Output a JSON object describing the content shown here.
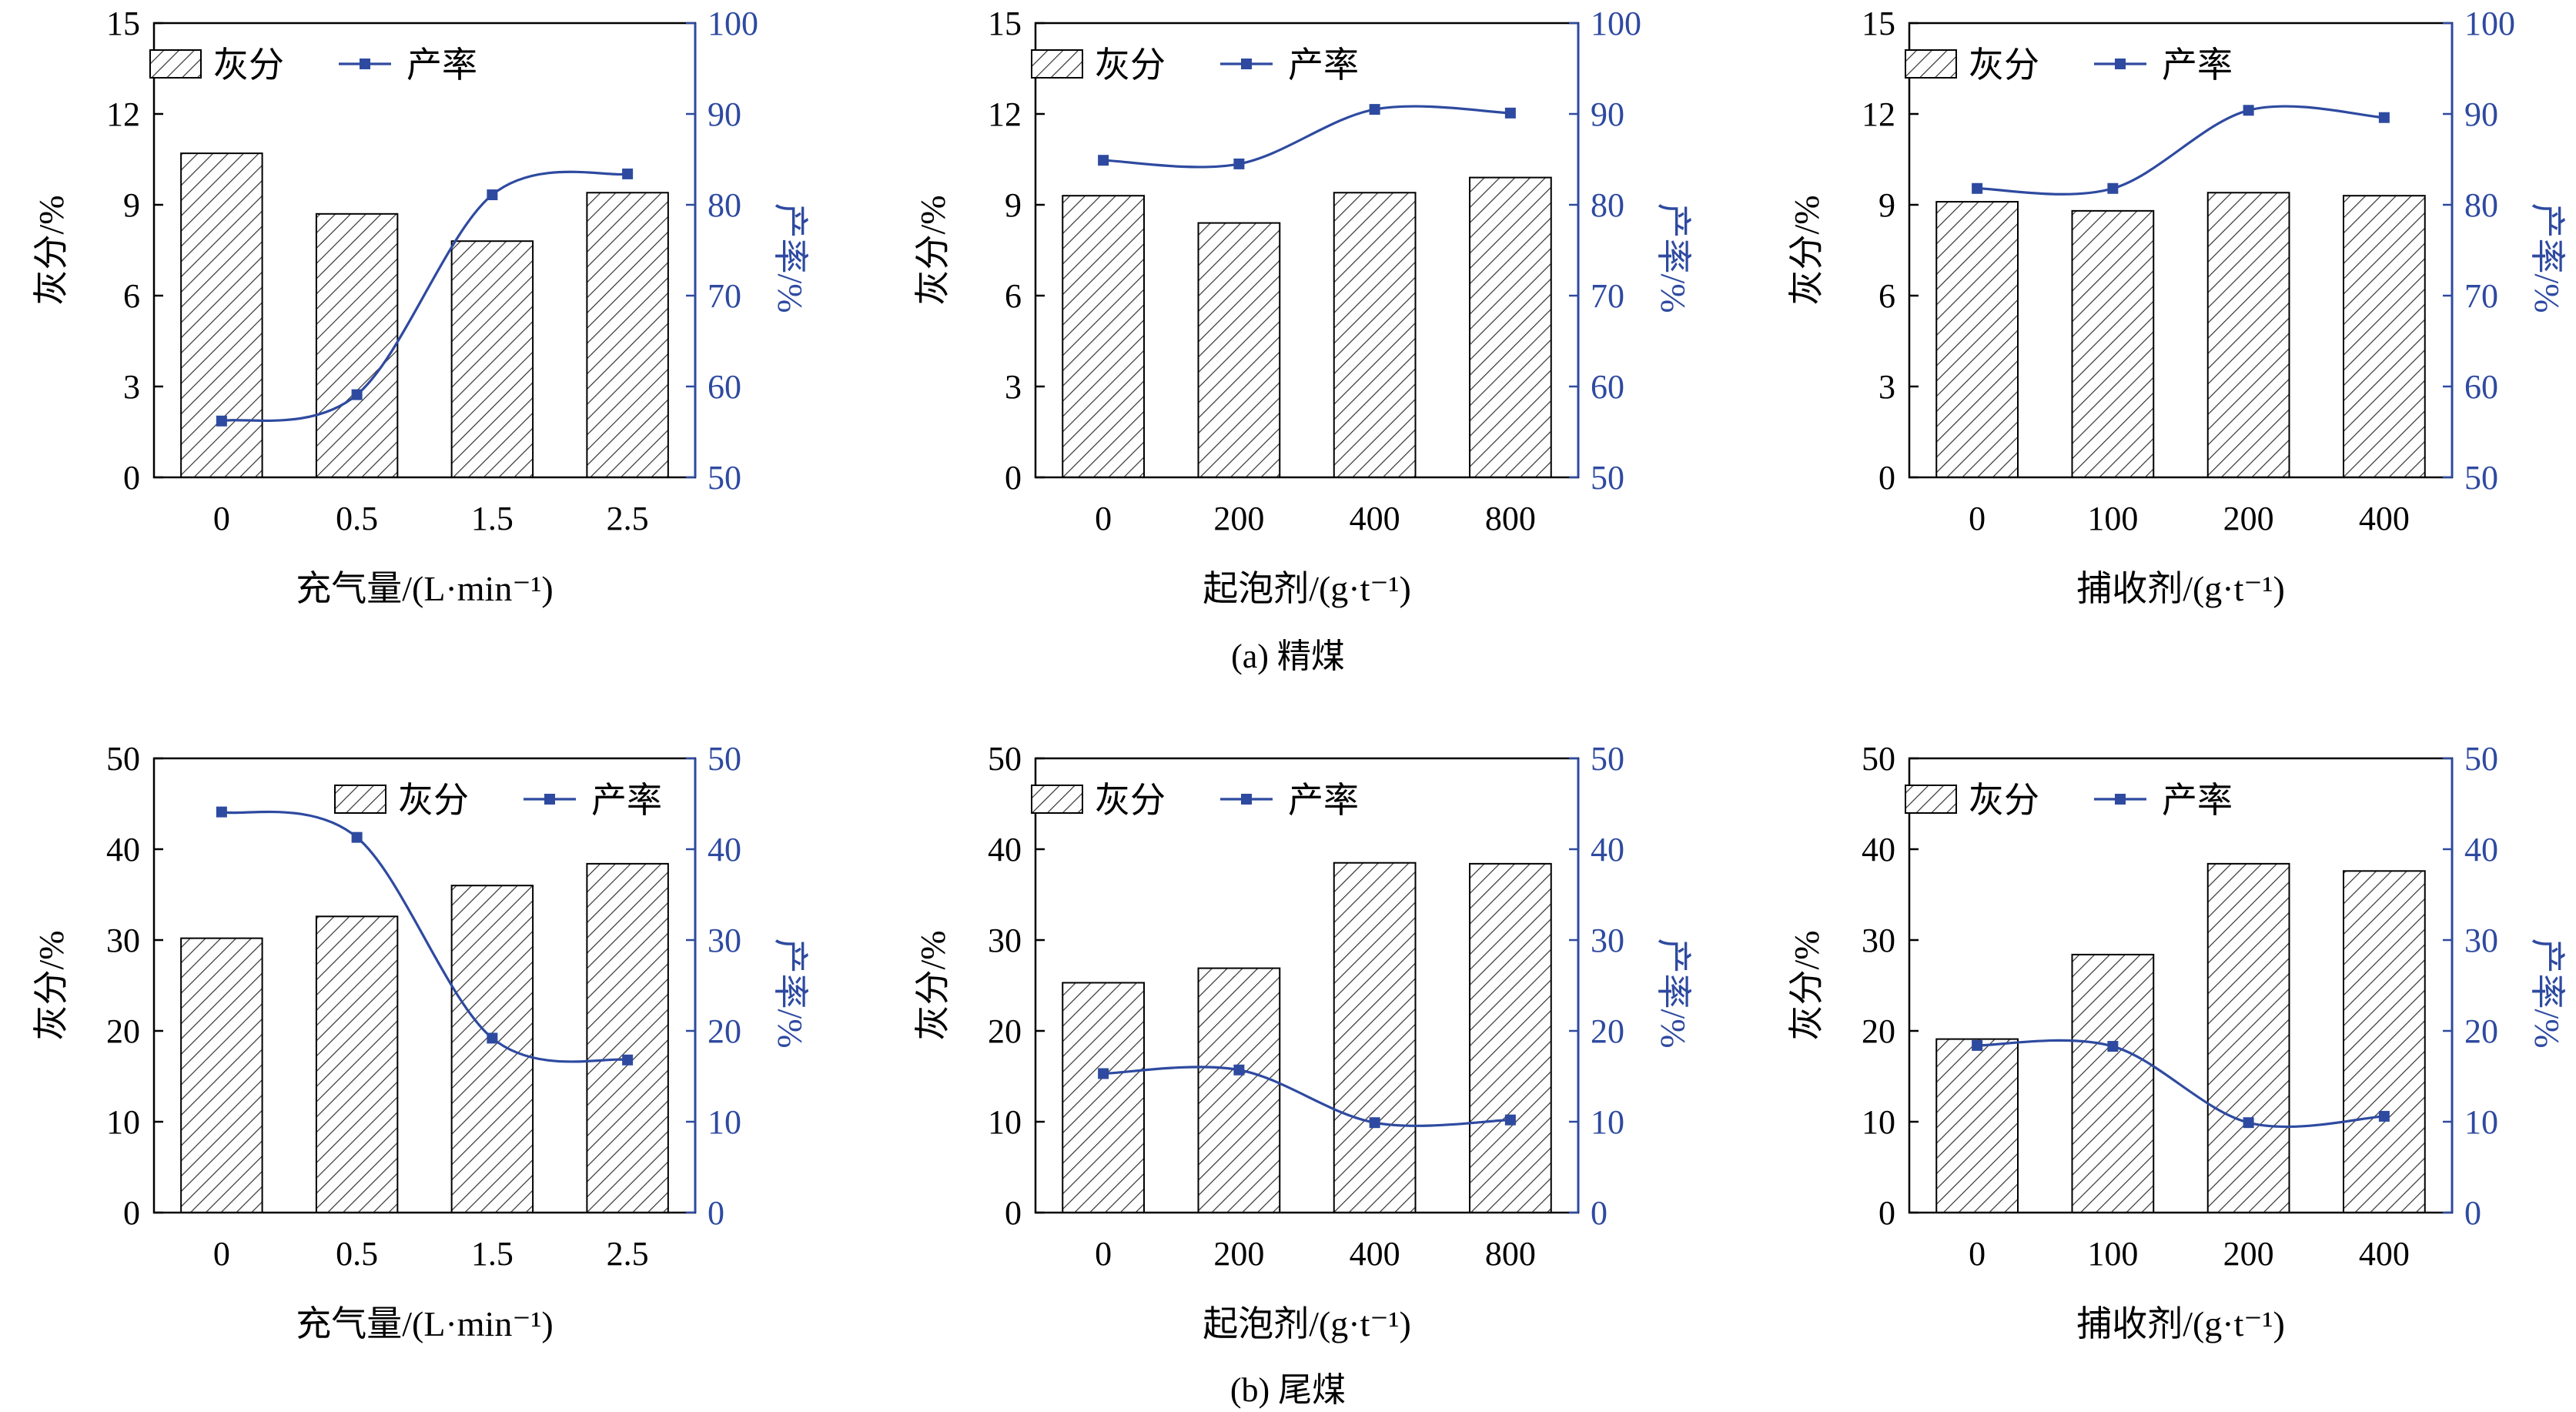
{
  "colors": {
    "bar_stroke": "#000000",
    "hatch": "#333333",
    "line": "#2e4aa0",
    "right_axis": "#2e4aa0"
  },
  "captions": [
    "(a) 精煤",
    "(b) 尾煤"
  ],
  "chart_data": [
    {
      "type": "bar",
      "panel": "a-1",
      "categories": [
        "0",
        "0.5",
        "1.5",
        "2.5"
      ],
      "xlabel": "充气量/(L·min⁻¹)",
      "ylabel": "灰分/%",
      "ylabel_right": "产率/%",
      "ylim": [
        0,
        15
      ],
      "yticks": [
        "0",
        "3",
        "6",
        "9",
        "12",
        "15"
      ],
      "ylim_right": [
        50,
        100
      ],
      "yticks_right": [
        "50",
        "60",
        "70",
        "80",
        "90",
        "100"
      ],
      "legend": [
        "灰分",
        "产率"
      ],
      "series": [
        {
          "name": "灰分",
          "type": "bar",
          "axis": "left",
          "values": [
            10.7,
            8.7,
            7.8,
            9.4
          ]
        },
        {
          "name": "产率",
          "type": "line",
          "axis": "right",
          "values": [
            56.2,
            59.1,
            81.1,
            83.4
          ]
        }
      ]
    },
    {
      "type": "bar",
      "panel": "a-2",
      "categories": [
        "0",
        "200",
        "400",
        "800"
      ],
      "xlabel": "起泡剂/(g·t⁻¹)",
      "ylabel": "灰分/%",
      "ylabel_right": "产率/%",
      "ylim": [
        0,
        15
      ],
      "yticks": [
        "0",
        "3",
        "6",
        "9",
        "12",
        "15"
      ],
      "ylim_right": [
        50,
        100
      ],
      "yticks_right": [
        "50",
        "60",
        "70",
        "80",
        "90",
        "100"
      ],
      "legend": [
        "灰分",
        "产率"
      ],
      "series": [
        {
          "name": "灰分",
          "type": "bar",
          "axis": "left",
          "values": [
            9.3,
            8.4,
            9.4,
            9.9
          ]
        },
        {
          "name": "产率",
          "type": "line",
          "axis": "right",
          "values": [
            84.9,
            84.5,
            90.5,
            90.1
          ]
        }
      ]
    },
    {
      "type": "bar",
      "panel": "a-3",
      "categories": [
        "0",
        "100",
        "200",
        "400"
      ],
      "xlabel": "捕收剂/(g·t⁻¹)",
      "ylabel": "灰分/%",
      "ylabel_right": "产率/%",
      "ylim": [
        0,
        15
      ],
      "yticks": [
        "0",
        "3",
        "6",
        "9",
        "12",
        "15"
      ],
      "ylim_right": [
        50,
        100
      ],
      "yticks_right": [
        "50",
        "60",
        "70",
        "80",
        "90",
        "100"
      ],
      "legend": [
        "灰分",
        "产率"
      ],
      "series": [
        {
          "name": "灰分",
          "type": "bar",
          "axis": "left",
          "values": [
            9.1,
            8.8,
            9.4,
            9.3
          ]
        },
        {
          "name": "产率",
          "type": "line",
          "axis": "right",
          "values": [
            81.8,
            81.8,
            90.4,
            89.6
          ]
        }
      ]
    },
    {
      "type": "bar",
      "panel": "b-1",
      "categories": [
        "0",
        "0.5",
        "1.5",
        "2.5"
      ],
      "xlabel": "充气量/(L·min⁻¹)",
      "ylabel": "灰分/%",
      "ylabel_right": "产率/%",
      "ylim": [
        0,
        50
      ],
      "yticks": [
        "0",
        "10",
        "20",
        "30",
        "40",
        "50"
      ],
      "ylim_right": [
        0,
        50
      ],
      "yticks_right": [
        "0",
        "10",
        "20",
        "30",
        "40",
        "50"
      ],
      "legend": [
        "灰分",
        "产率"
      ],
      "series": [
        {
          "name": "灰分",
          "type": "bar",
          "axis": "left",
          "values": [
            30.2,
            32.6,
            36.0,
            38.4
          ]
        },
        {
          "name": "产率",
          "type": "line",
          "axis": "right",
          "values": [
            44.1,
            41.3,
            19.2,
            16.8
          ]
        }
      ]
    },
    {
      "type": "bar",
      "panel": "b-2",
      "categories": [
        "0",
        "200",
        "400",
        "800"
      ],
      "xlabel": "起泡剂/(g·t⁻¹)",
      "ylabel": "灰分/%",
      "ylabel_right": "产率/%",
      "ylim": [
        0,
        50
      ],
      "yticks": [
        "0",
        "10",
        "20",
        "30",
        "40",
        "50"
      ],
      "ylim_right": [
        0,
        50
      ],
      "yticks_right": [
        "0",
        "10",
        "20",
        "30",
        "40",
        "50"
      ],
      "legend": [
        "灰分",
        "产率"
      ],
      "series": [
        {
          "name": "灰分",
          "type": "bar",
          "axis": "left",
          "values": [
            25.3,
            26.9,
            38.5,
            38.4
          ]
        },
        {
          "name": "产率",
          "type": "line",
          "axis": "right",
          "values": [
            15.3,
            15.7,
            9.9,
            10.2
          ]
        }
      ]
    },
    {
      "type": "bar",
      "panel": "b-3",
      "categories": [
        "0",
        "100",
        "200",
        "400"
      ],
      "xlabel": "捕收剂/(g·t⁻¹)",
      "ylabel": "灰分/%",
      "ylabel_right": "产率/%",
      "ylim": [
        0,
        50
      ],
      "yticks": [
        "0",
        "10",
        "20",
        "30",
        "40",
        "50"
      ],
      "ylim_right": [
        0,
        50
      ],
      "yticks_right": [
        "0",
        "10",
        "20",
        "30",
        "40",
        "50"
      ],
      "legend": [
        "灰分",
        "产率"
      ],
      "series": [
        {
          "name": "灰分",
          "type": "bar",
          "axis": "left",
          "values": [
            19.1,
            28.4,
            38.4,
            37.6
          ]
        },
        {
          "name": "产率",
          "type": "line",
          "axis": "right",
          "values": [
            18.4,
            18.3,
            9.9,
            10.6
          ]
        }
      ]
    }
  ]
}
